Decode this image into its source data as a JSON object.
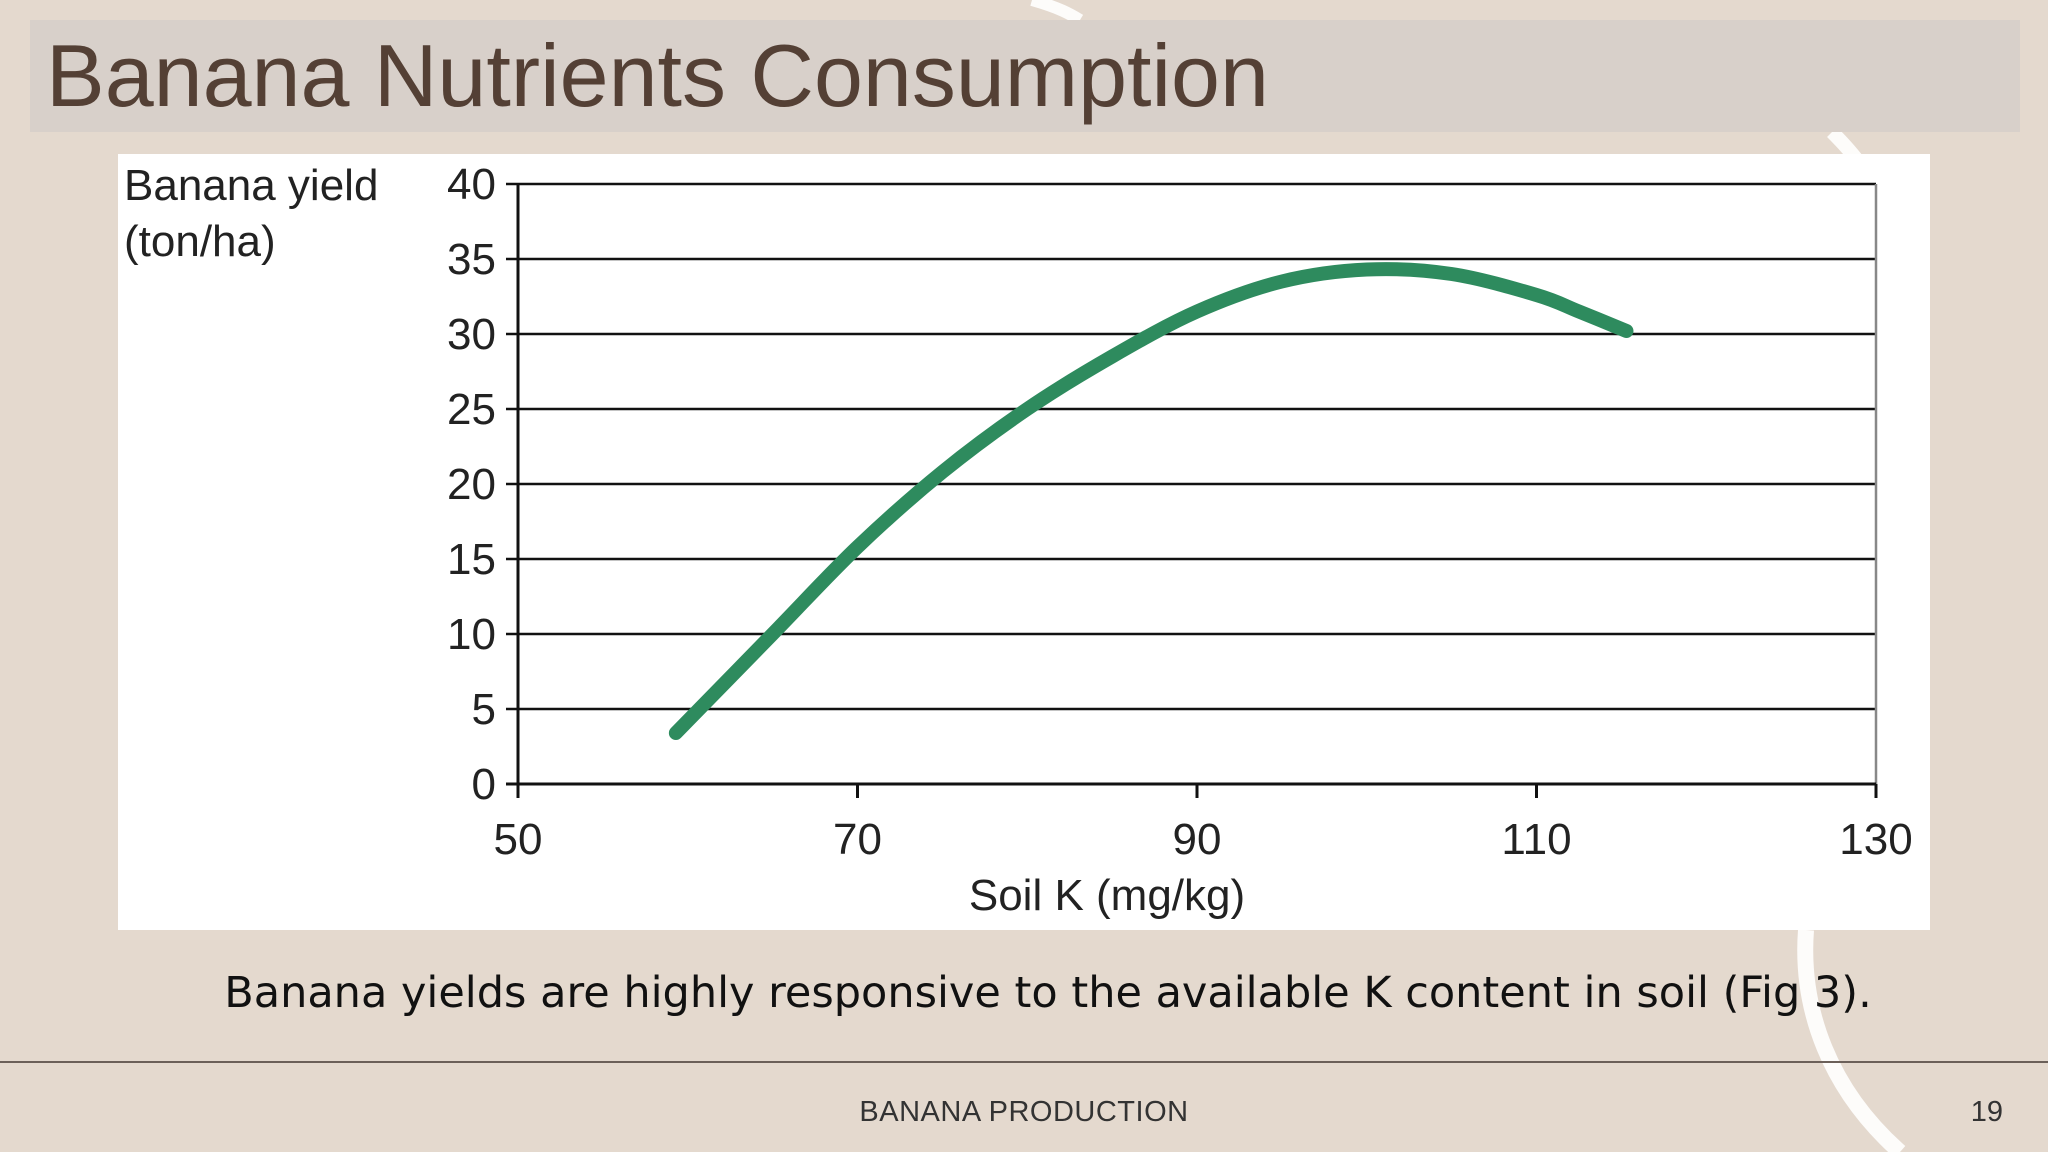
{
  "slide": {
    "title": "Banana Nutrients Consumption",
    "caption": "Banana yields are highly responsive to the available K content in soil (Fig 3).",
    "footer": "BANANA PRODUCTION",
    "page_number": "19"
  },
  "colors": {
    "background": "#e4d9ce",
    "title_band": "#d8d0ca",
    "title_text": "#544035",
    "curve": "#2e8b5e",
    "decor_line": "#ffffff"
  },
  "chart_data": {
    "type": "line",
    "ylabel_line1": "Banana yield",
    "ylabel_line2": "(ton/ha)",
    "xlabel": "Soil K (mg/kg)",
    "xlim": [
      50,
      130
    ],
    "ylim": [
      0,
      40
    ],
    "x_ticks": [
      50,
      70,
      90,
      110,
      130
    ],
    "y_ticks": [
      0,
      5,
      10,
      15,
      20,
      25,
      30,
      35,
      40
    ],
    "grid": "horizontal",
    "series": [
      {
        "x": [
          59.3,
          65,
          70,
          75,
          80,
          85,
          90,
          95,
          100,
          105,
          110,
          112.5,
          115.3
        ],
        "y": [
          3.4,
          10.0,
          15.8,
          20.8,
          25.0,
          28.5,
          31.5,
          33.5,
          34.3,
          34.0,
          32.6,
          31.5,
          30.2
        ]
      }
    ]
  }
}
